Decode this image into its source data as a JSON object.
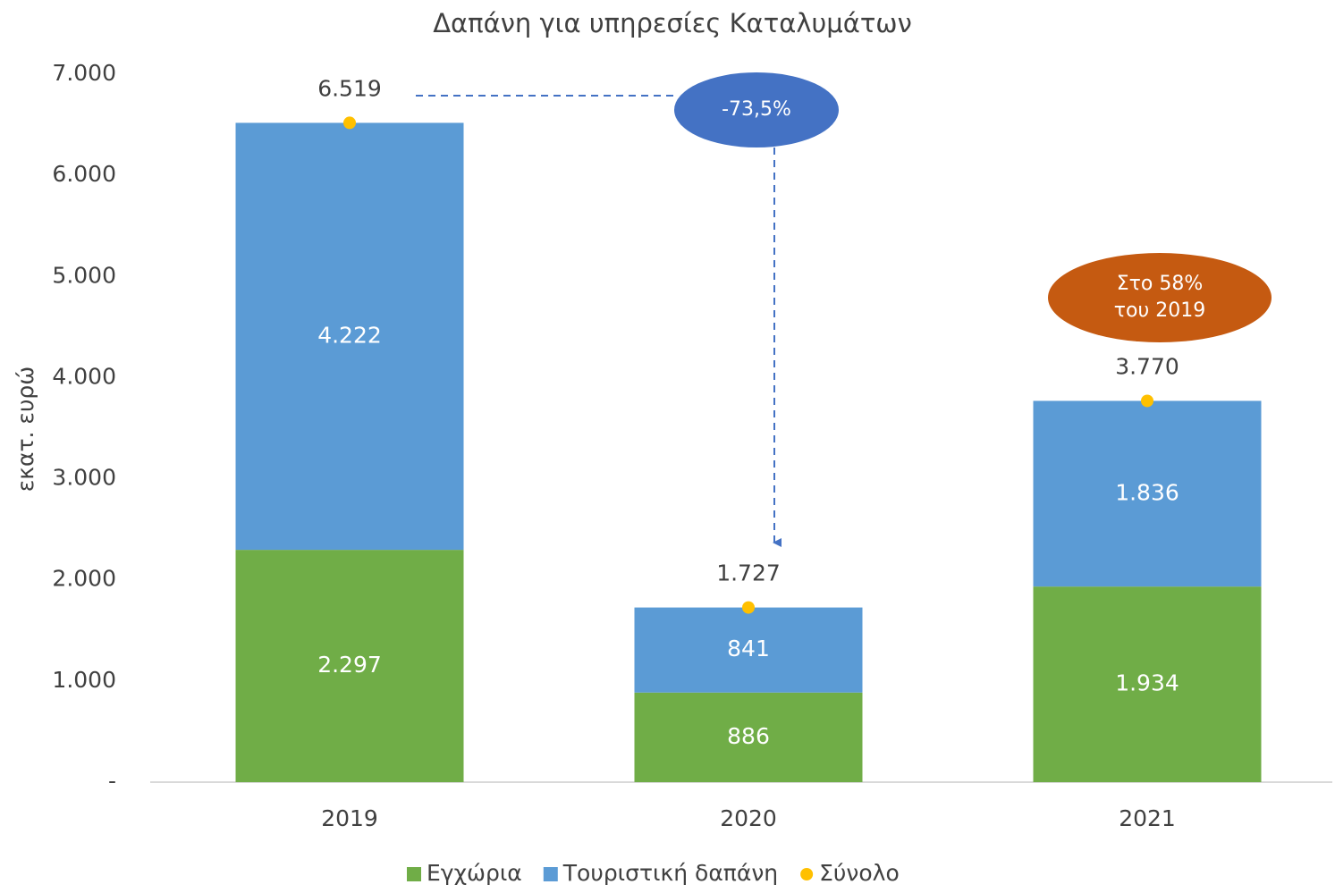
{
  "chart_data": {
    "type": "stacked_bar",
    "title": "Δαπάνη για υπηρεσίες Καταλυμάτων",
    "y_label": "εκατ. ευρώ",
    "categories": [
      "2019",
      "2020",
      "2021"
    ],
    "series": [
      {
        "name": "Εγχώρια",
        "color": "#70ad47",
        "values": [
          2297,
          886,
          1934
        ],
        "value_labels": [
          "2.297",
          "886",
          "1.934"
        ]
      },
      {
        "name": "Τουριστική δαπάνη",
        "color": "#5b9bd5",
        "values": [
          4222,
          841,
          1836
        ],
        "value_labels": [
          "4.222",
          "841",
          "1.836"
        ]
      },
      {
        "name": "Σύνολο",
        "color": "#ffc000",
        "kind": "marker",
        "values": [
          6519,
          1727,
          3770
        ],
        "value_labels": [
          "6.519",
          "1.727",
          "3.770"
        ]
      }
    ],
    "ylim": [
      0,
      7000
    ],
    "yticks": [
      {
        "value": 0,
        "label": "-"
      },
      {
        "value": 1000,
        "label": "1.000"
      },
      {
        "value": 2000,
        "label": "2.000"
      },
      {
        "value": 3000,
        "label": "3.000"
      },
      {
        "value": 4000,
        "label": "4.000"
      },
      {
        "value": 5000,
        "label": "5.000"
      },
      {
        "value": 6000,
        "label": "6.000"
      },
      {
        "value": 7000,
        "label": "7.000"
      }
    ],
    "annotations": [
      {
        "lines": [
          "-73,5%"
        ],
        "color": "#4472c4"
      },
      {
        "lines": [
          "Στο 58%",
          "του 2019"
        ],
        "color": "#c55a11"
      }
    ],
    "legend": "bottom"
  }
}
